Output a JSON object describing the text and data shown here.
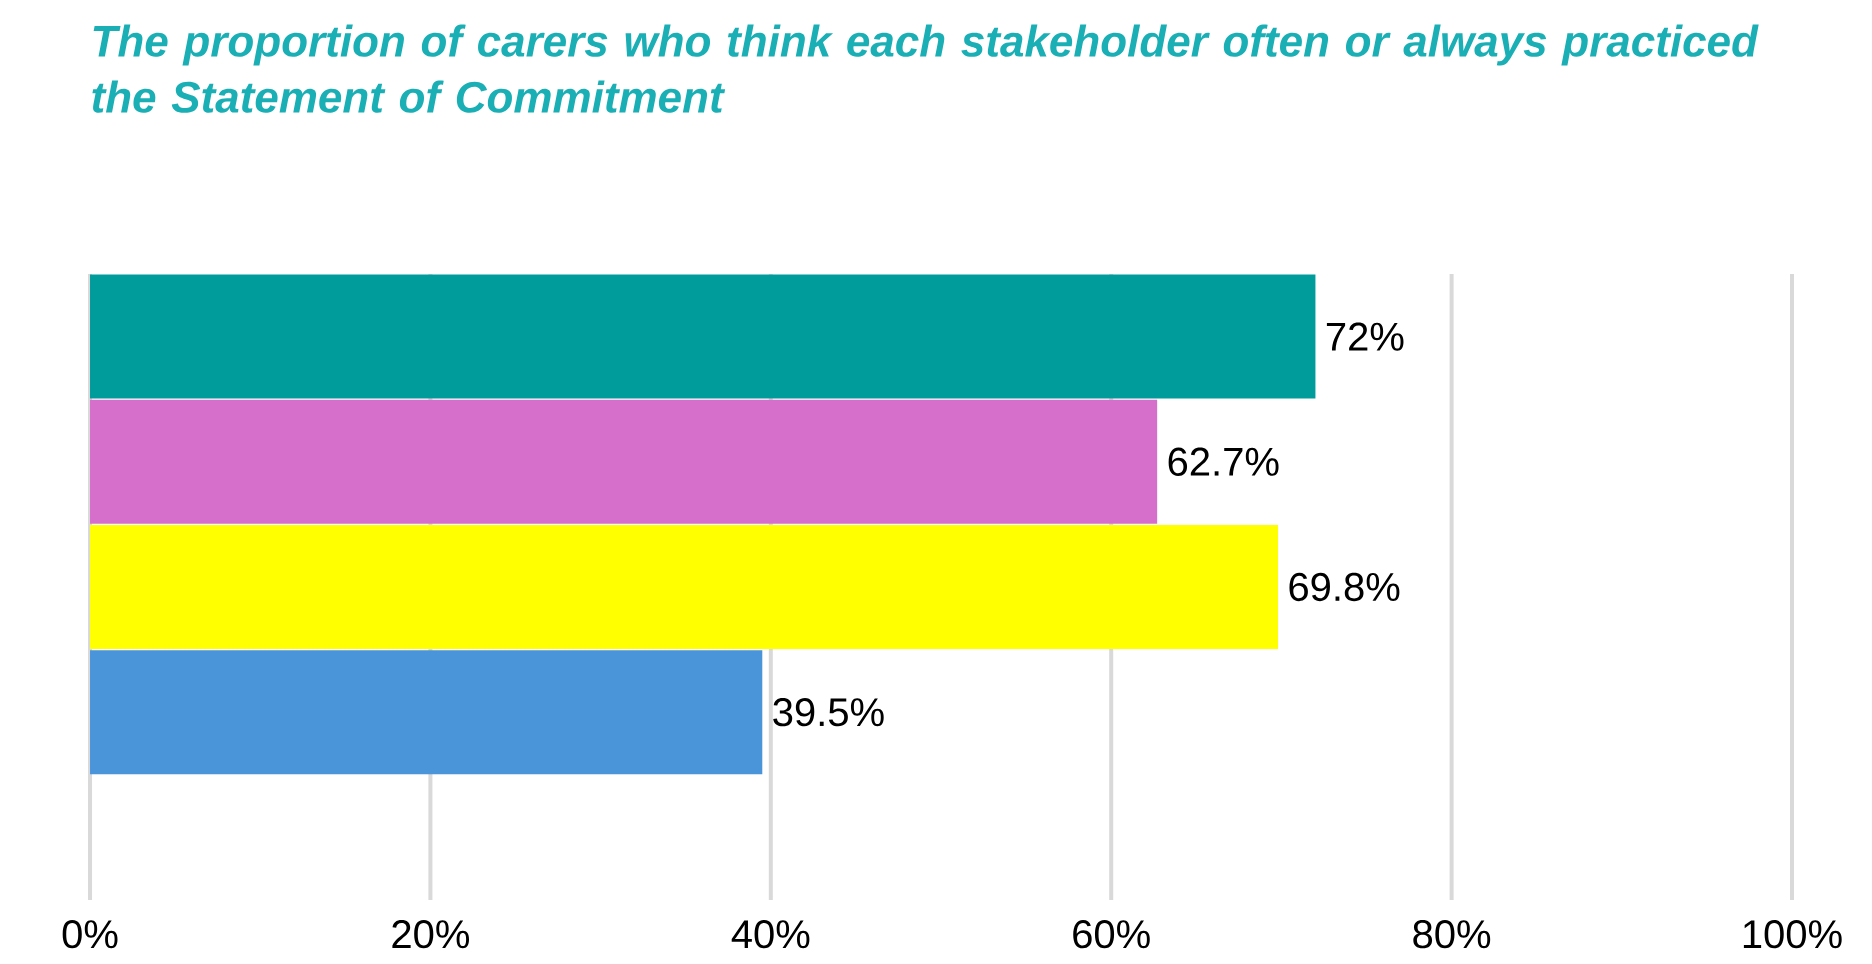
{
  "chart_data": {
    "type": "bar",
    "orientation": "horizontal",
    "title": "The proportion of carers who think each stakeholder often or always practiced the Statement of Commitment",
    "categories": [
      null,
      null,
      null,
      null
    ],
    "values": [
      72,
      62.7,
      69.8,
      39.5
    ],
    "colors": [
      "#009b9b",
      "#d66fcb",
      "#ffff00",
      "#4a95d9"
    ],
    "value_labels": [
      "72%",
      "62.7%",
      "69.8%",
      "39.5%"
    ],
    "xlim": [
      0,
      100
    ],
    "xticks": [
      {
        "value": 0,
        "label": "0%"
      },
      {
        "value": 20,
        "label": "20%"
      },
      {
        "value": 40,
        "label": "40%"
      },
      {
        "value": 60,
        "label": "60%"
      },
      {
        "value": 80,
        "label": "80%"
      },
      {
        "value": 100,
        "label": "100%"
      }
    ],
    "grid": "x"
  }
}
